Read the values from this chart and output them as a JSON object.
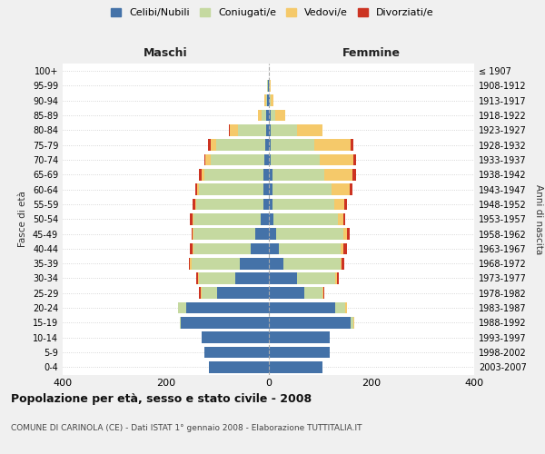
{
  "age_groups": [
    "0-4",
    "5-9",
    "10-14",
    "15-19",
    "20-24",
    "25-29",
    "30-34",
    "35-39",
    "40-44",
    "45-49",
    "50-54",
    "55-59",
    "60-64",
    "65-69",
    "70-74",
    "75-79",
    "80-84",
    "85-89",
    "90-94",
    "95-99",
    "100+"
  ],
  "birth_years": [
    "2003-2007",
    "1998-2002",
    "1993-1997",
    "1988-1992",
    "1983-1987",
    "1978-1982",
    "1973-1977",
    "1968-1972",
    "1963-1967",
    "1958-1962",
    "1953-1957",
    "1948-1952",
    "1943-1947",
    "1938-1942",
    "1933-1937",
    "1928-1932",
    "1923-1927",
    "1918-1922",
    "1913-1917",
    "1908-1912",
    "≤ 1907"
  ],
  "males": {
    "celibi": [
      115,
      125,
      130,
      170,
      160,
      100,
      65,
      55,
      35,
      25,
      15,
      10,
      10,
      10,
      8,
      6,
      5,
      5,
      2,
      1,
      0
    ],
    "coniugati": [
      0,
      0,
      0,
      3,
      15,
      30,
      70,
      95,
      110,
      120,
      130,
      130,
      125,
      115,
      105,
      95,
      55,
      8,
      3,
      1,
      0
    ],
    "vedovi": [
      0,
      0,
      0,
      0,
      0,
      2,
      2,
      2,
      2,
      2,
      2,
      2,
      3,
      5,
      10,
      12,
      15,
      8,
      3,
      1,
      0
    ],
    "divorziati": [
      0,
      0,
      0,
      0,
      0,
      3,
      3,
      3,
      5,
      3,
      5,
      5,
      5,
      5,
      2,
      5,
      1,
      0,
      0,
      0,
      0
    ]
  },
  "females": {
    "nubili": [
      105,
      120,
      120,
      160,
      130,
      70,
      55,
      30,
      20,
      15,
      10,
      8,
      8,
      8,
      5,
      5,
      5,
      5,
      2,
      1,
      0
    ],
    "coniugate": [
      0,
      0,
      0,
      5,
      20,
      35,
      75,
      110,
      120,
      130,
      125,
      120,
      115,
      100,
      95,
      85,
      50,
      8,
      3,
      1,
      0
    ],
    "vedove": [
      0,
      0,
      0,
      2,
      2,
      2,
      3,
      3,
      5,
      8,
      10,
      20,
      35,
      55,
      65,
      70,
      50,
      20,
      5,
      2,
      0
    ],
    "divorziate": [
      0,
      0,
      0,
      0,
      0,
      2,
      3,
      5,
      8,
      5,
      5,
      5,
      5,
      8,
      5,
      5,
      0,
      0,
      0,
      0,
      0
    ]
  },
  "colors": {
    "celibi": "#4472a8",
    "coniugati": "#c5d9a0",
    "vedovi": "#f5c96a",
    "divorziati": "#cc3322"
  },
  "xlim": 400,
  "title": "Popolazione per età, sesso e stato civile - 2008",
  "subtitle": "COMUNE DI CARINOLA (CE) - Dati ISTAT 1° gennaio 2008 - Elaborazione TUTTITALIA.IT",
  "xlabel_left": "Maschi",
  "xlabel_right": "Femmine",
  "ylabel_left": "Fasce di età",
  "ylabel_right": "Anni di nascita",
  "bg_color": "#f0f0f0",
  "plot_bg": "#ffffff"
}
